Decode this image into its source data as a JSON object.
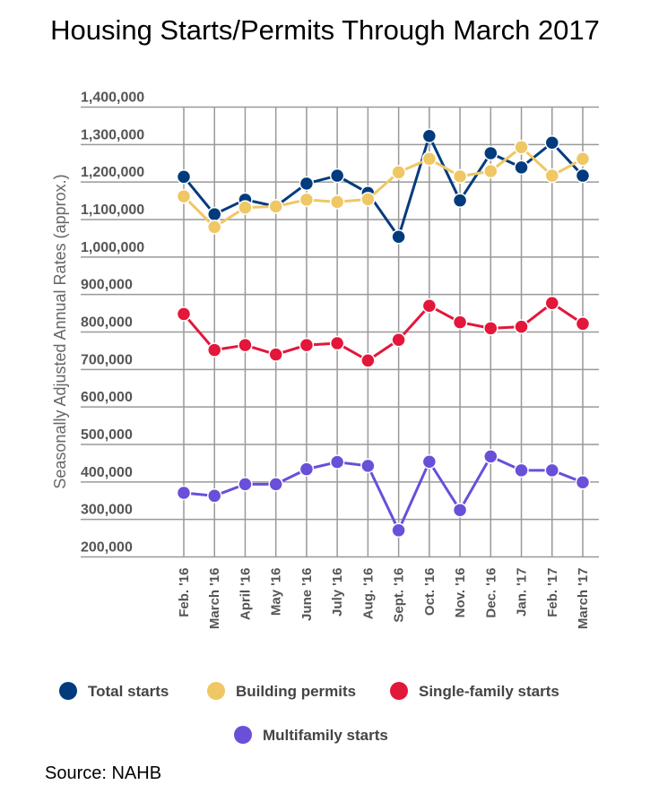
{
  "chart_data": {
    "type": "line",
    "title": "Housing Starts/Permits Through March 2017",
    "ylabel": "Seasonally Adjusted Annual Rates (approx.)",
    "xlabel": "",
    "ylim": [
      200000,
      1400000
    ],
    "yticks": [
      "1,400,000",
      "1,300,000",
      "1,200,000",
      "1,100,000",
      "1,000,000",
      "900,000",
      "800,000",
      "700,000",
      "600,000",
      "500,000",
      "400,000",
      "300,000",
      "200,000"
    ],
    "ytick_values": [
      1400000,
      1300000,
      1200000,
      1100000,
      1000000,
      900000,
      800000,
      700000,
      600000,
      500000,
      400000,
      300000,
      200000
    ],
    "grid": true,
    "legend_position": "bottom",
    "categories": [
      "Feb. '16",
      "March '16",
      "April '16",
      "May '16",
      "June '16",
      "July '16",
      "Aug. '16",
      "Sept. '16",
      "Oct. '16",
      "Nov. '16",
      "Dec. '16",
      "Jan. '17",
      "Feb. '17",
      "March '17"
    ],
    "series": [
      {
        "name": "Total starts",
        "color": "#003b7e",
        "values": [
          1214000,
          1114000,
          1153000,
          1135000,
          1196000,
          1217000,
          1171000,
          1054000,
          1323000,
          1151000,
          1277000,
          1239000,
          1305000,
          1217000
        ]
      },
      {
        "name": "Building permits",
        "color": "#efc764",
        "values": [
          1162000,
          1080000,
          1132000,
          1135000,
          1153000,
          1147000,
          1154000,
          1226000,
          1262000,
          1215000,
          1229000,
          1293000,
          1217000,
          1262000
        ]
      },
      {
        "name": "Single-family starts",
        "color": "#e2173a",
        "values": [
          848000,
          752000,
          765000,
          740000,
          765000,
          770000,
          724000,
          779000,
          870000,
          826000,
          810000,
          814000,
          877000,
          822000
        ]
      },
      {
        "name": "Multifamily starts",
        "color": "#6a4fd9",
        "values": [
          371000,
          363000,
          394000,
          394000,
          434000,
          453000,
          443000,
          271000,
          454000,
          325000,
          468000,
          431000,
          431000,
          399000
        ]
      }
    ]
  },
  "source": "Source: NAHB"
}
